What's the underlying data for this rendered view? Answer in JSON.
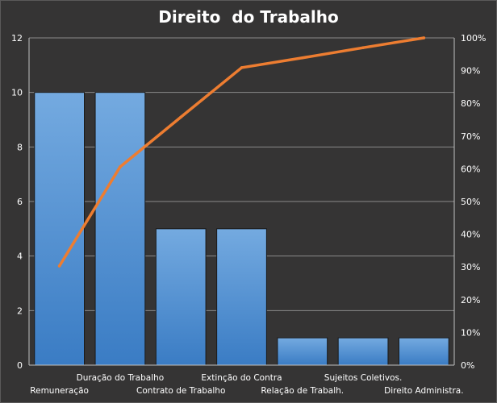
{
  "chart_data": {
    "type": "bar",
    "title": "Direito  do Trabalho",
    "categories": [
      "Remuneração",
      "Duração do Trabalho",
      "Contrato de Trabalho",
      "Extinção do Contra",
      "Relação de Trabalh.",
      "Sujeitos Coletivos.",
      "Direito Administra."
    ],
    "series": [
      {
        "type": "bar",
        "axis": "left",
        "values": [
          10,
          10,
          5,
          5,
          1,
          1,
          1
        ],
        "color": "#5b9bd5"
      },
      {
        "type": "line",
        "axis": "right",
        "values": [
          30.3,
          60.6,
          75.8,
          90.9,
          93.9,
          97.0,
          100.0
        ],
        "color": "#ed7d31"
      }
    ],
    "ylim": [
      0,
      12
    ],
    "y_ticks": [
      "0",
      "2",
      "4",
      "6",
      "8",
      "10",
      "12"
    ],
    "y2lim": [
      0,
      100
    ],
    "y2_ticks": [
      "0%",
      "10%",
      "20%",
      "30%",
      "40%",
      "50%",
      "60%",
      "70%",
      "80%",
      "90%",
      "100%"
    ],
    "grid": true,
    "legend": "none",
    "xlabel": "",
    "ylabel": ""
  }
}
